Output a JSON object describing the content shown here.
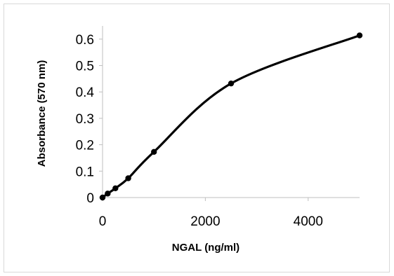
{
  "chart_data": {
    "type": "scatter",
    "title": "",
    "xlabel": "NGAL (ng/ml)",
    "ylabel": "Absorbance (570 nm)",
    "xlim": [
      0,
      5000
    ],
    "ylim": [
      0,
      0.65
    ],
    "x_ticks": [
      0,
      2000,
      4000
    ],
    "x_tick_labels": [
      "0",
      "2000",
      "4000"
    ],
    "y_ticks": [
      0,
      0.1,
      0.2,
      0.3,
      0.4,
      0.5,
      0.6
    ],
    "y_tick_labels": [
      "0",
      "0.1",
      "0.2",
      "0.3",
      "0.4",
      "0.5",
      "0.6"
    ],
    "grid": false,
    "legend": "none",
    "smoothed_line": true,
    "marker_color": "#000000",
    "line_color": "#000000",
    "series": [
      {
        "x": [
          0,
          100,
          250,
          500,
          1000,
          2500,
          5000
        ],
        "y": [
          0,
          0.015,
          0.035,
          0.073,
          0.173,
          0.432,
          0.614
        ]
      }
    ]
  }
}
